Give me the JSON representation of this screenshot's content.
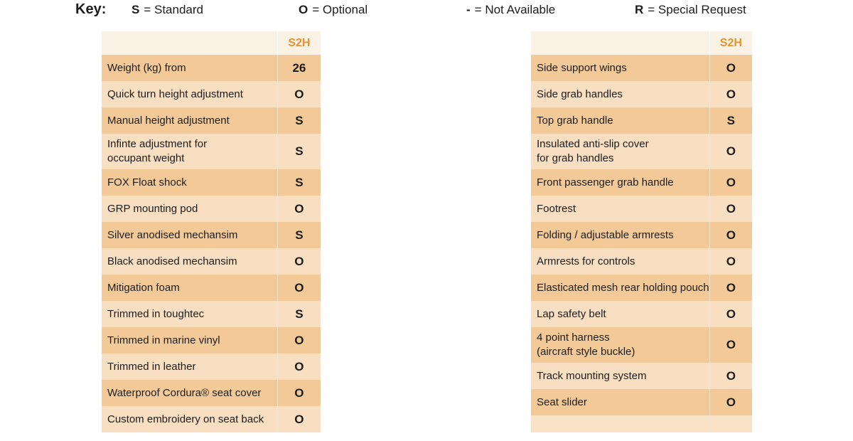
{
  "key": {
    "title": "Key:",
    "items": [
      {
        "symbol": "S",
        "text": "= Standard"
      },
      {
        "symbol": "O",
        "text": "= Optional"
      },
      {
        "symbol": "-",
        "text": "= Not Available"
      },
      {
        "symbol": "R",
        "text": "= Special Request"
      }
    ]
  },
  "left_table": {
    "column": "S2H",
    "rows": [
      {
        "feature": "Weight (kg) from",
        "value": "26"
      },
      {
        "feature": "Quick turn height adjustment",
        "value": "O"
      },
      {
        "feature": "Manual height adjustment",
        "value": "S"
      },
      {
        "feature": "Infinte adjustment for",
        "feature_line2": "occupant weight",
        "value": "S"
      },
      {
        "feature": "FOX Float shock",
        "value": "S"
      },
      {
        "feature": "GRP mounting pod",
        "value": "O"
      },
      {
        "feature": "Silver anodised mechansim",
        "value": "S"
      },
      {
        "feature": "Black anodised mechansim",
        "value": "O"
      },
      {
        "feature": "Mitigation foam",
        "value": "O"
      },
      {
        "feature": "Trimmed in toughtec",
        "value": "S"
      },
      {
        "feature": "Trimmed in marine vinyl",
        "value": "O"
      },
      {
        "feature": "Trimmed in leather",
        "value": "O"
      },
      {
        "feature": "Waterproof Cordura® seat cover",
        "value": "O"
      },
      {
        "feature": "Custom embroidery on seat back",
        "value": "O"
      }
    ]
  },
  "right_table": {
    "column": "S2H",
    "rows": [
      {
        "feature": "Side support wings",
        "value": "O"
      },
      {
        "feature": "Side grab handles",
        "value": "O"
      },
      {
        "feature": "Top grab handle",
        "value": "S"
      },
      {
        "feature": "Insulated anti-slip cover",
        "feature_line2": "for grab handles",
        "value": "O"
      },
      {
        "feature": "Front passenger grab handle",
        "value": "O"
      },
      {
        "feature": "Footrest",
        "value": "O"
      },
      {
        "feature": "Folding / adjustable armrests",
        "value": "O"
      },
      {
        "feature": "Armrests for controls",
        "value": "O"
      },
      {
        "feature": "Elasticated mesh rear holding pouch",
        "value": "O"
      },
      {
        "feature": "Lap safety belt",
        "value": "O"
      },
      {
        "feature": "4 point harness",
        "feature_line2": "(aircraft style buckle)",
        "value": "O"
      },
      {
        "feature": "Track mounting system",
        "value": "O"
      },
      {
        "feature": "Seat slider",
        "value": "O"
      }
    ]
  },
  "colors": {
    "header_text": "#e8922d",
    "row_dark": "#f3ca97",
    "row_light": "#f8dfc2",
    "header_bg": "#fbf2e6"
  }
}
